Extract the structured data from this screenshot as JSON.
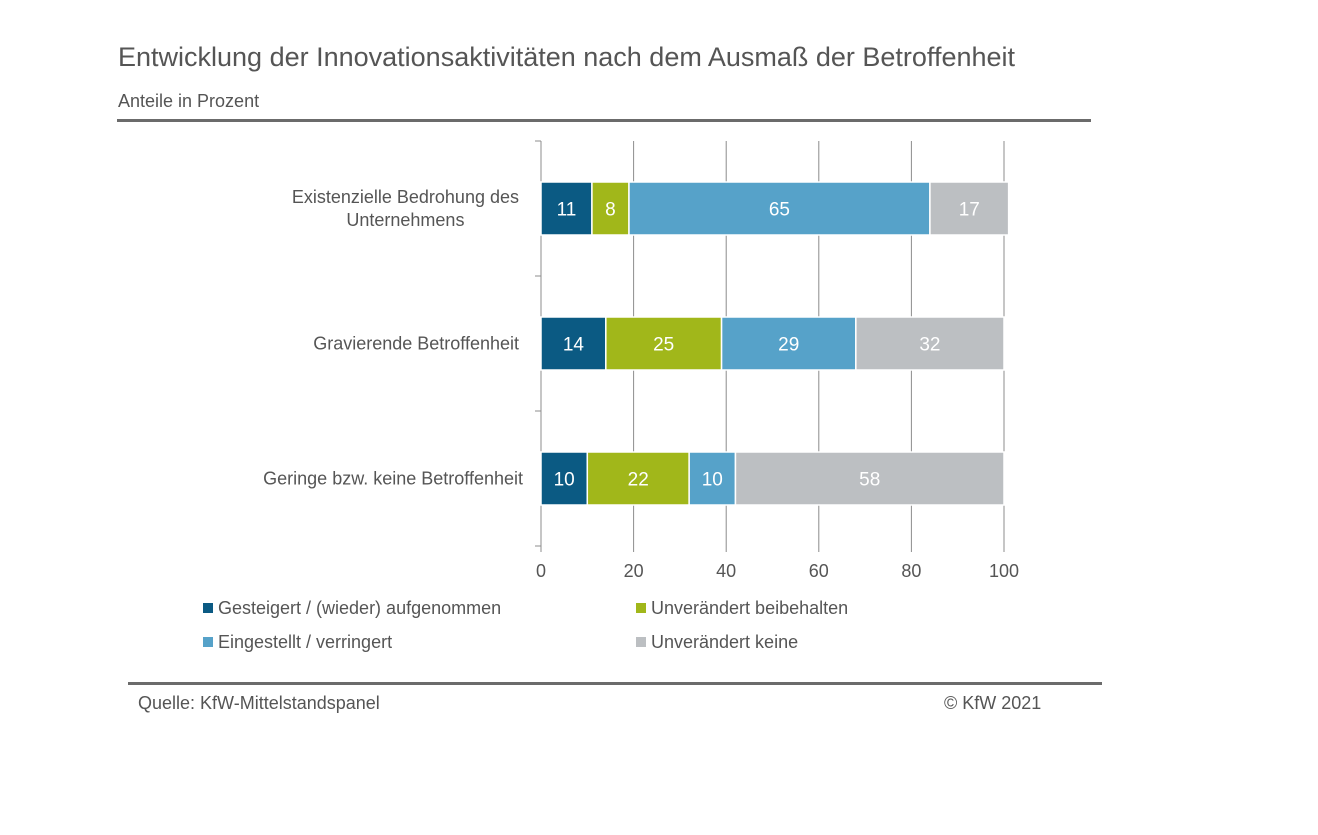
{
  "header": {
    "title": "Entwicklung der Innovationsaktivitäten nach dem Ausmaß der Betroffenheit",
    "subtitle": "Anteile in Prozent"
  },
  "footer": {
    "source": "Quelle: KfW-Mittelstandspanel",
    "copyright": "© KfW 2021"
  },
  "chart_data": {
    "type": "bar",
    "orientation": "horizontal",
    "stacked": true,
    "title": "Entwicklung der Innovationsaktivitäten nach dem Ausmaß der Betroffenheit",
    "subtitle": "Anteile in Prozent",
    "categories": [
      [
        "Existenzielle Bedrohung des",
        "Unternehmens"
      ],
      [
        "Gravierende Betroffenheit"
      ],
      [
        "Geringe bzw. keine Betroffenheit"
      ]
    ],
    "series": [
      {
        "name": "Gesteigert / (wieder) aufgenommen",
        "color": "#0b5a83",
        "values": [
          11,
          14,
          10
        ]
      },
      {
        "name": "Unverändert beibehalten",
        "color": "#a1b71a",
        "values": [
          8,
          25,
          22
        ]
      },
      {
        "name": "Eingestellt / verringert",
        "color": "#56a2c9",
        "values": [
          65,
          29,
          10
        ]
      },
      {
        "name": "Unverändert keine",
        "color": "#bcbfc2",
        "values": [
          17,
          32,
          58
        ]
      }
    ],
    "xlim": [
      0,
      100
    ],
    "xticks": [
      "0",
      "20",
      "40",
      "60",
      "80",
      "100"
    ],
    "grid": true,
    "legend_position": "bottom"
  }
}
